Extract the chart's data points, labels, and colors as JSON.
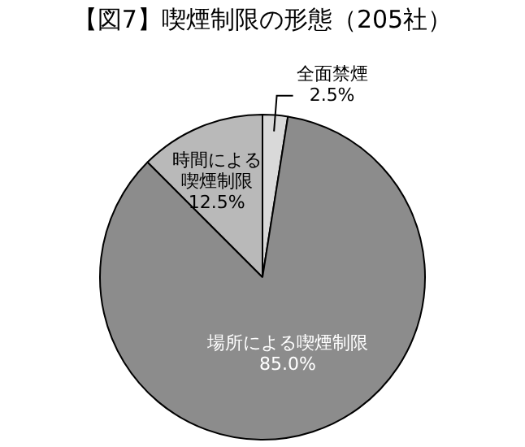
{
  "chart_data": {
    "type": "pie",
    "title": "【図7】喫煙制限の形態（205社）",
    "categories": [
      "全面禁煙",
      "場所による喫煙制限",
      "時間による喫煙制限"
    ],
    "values": [
      2.5,
      85,
      12.5
    ],
    "colors": [
      "#d9d9d9",
      "#8c8c8c",
      "#b9b9b9"
    ],
    "value_labels": [
      "2.5%",
      "85.0%",
      "12.5%"
    ],
    "legend": false
  }
}
